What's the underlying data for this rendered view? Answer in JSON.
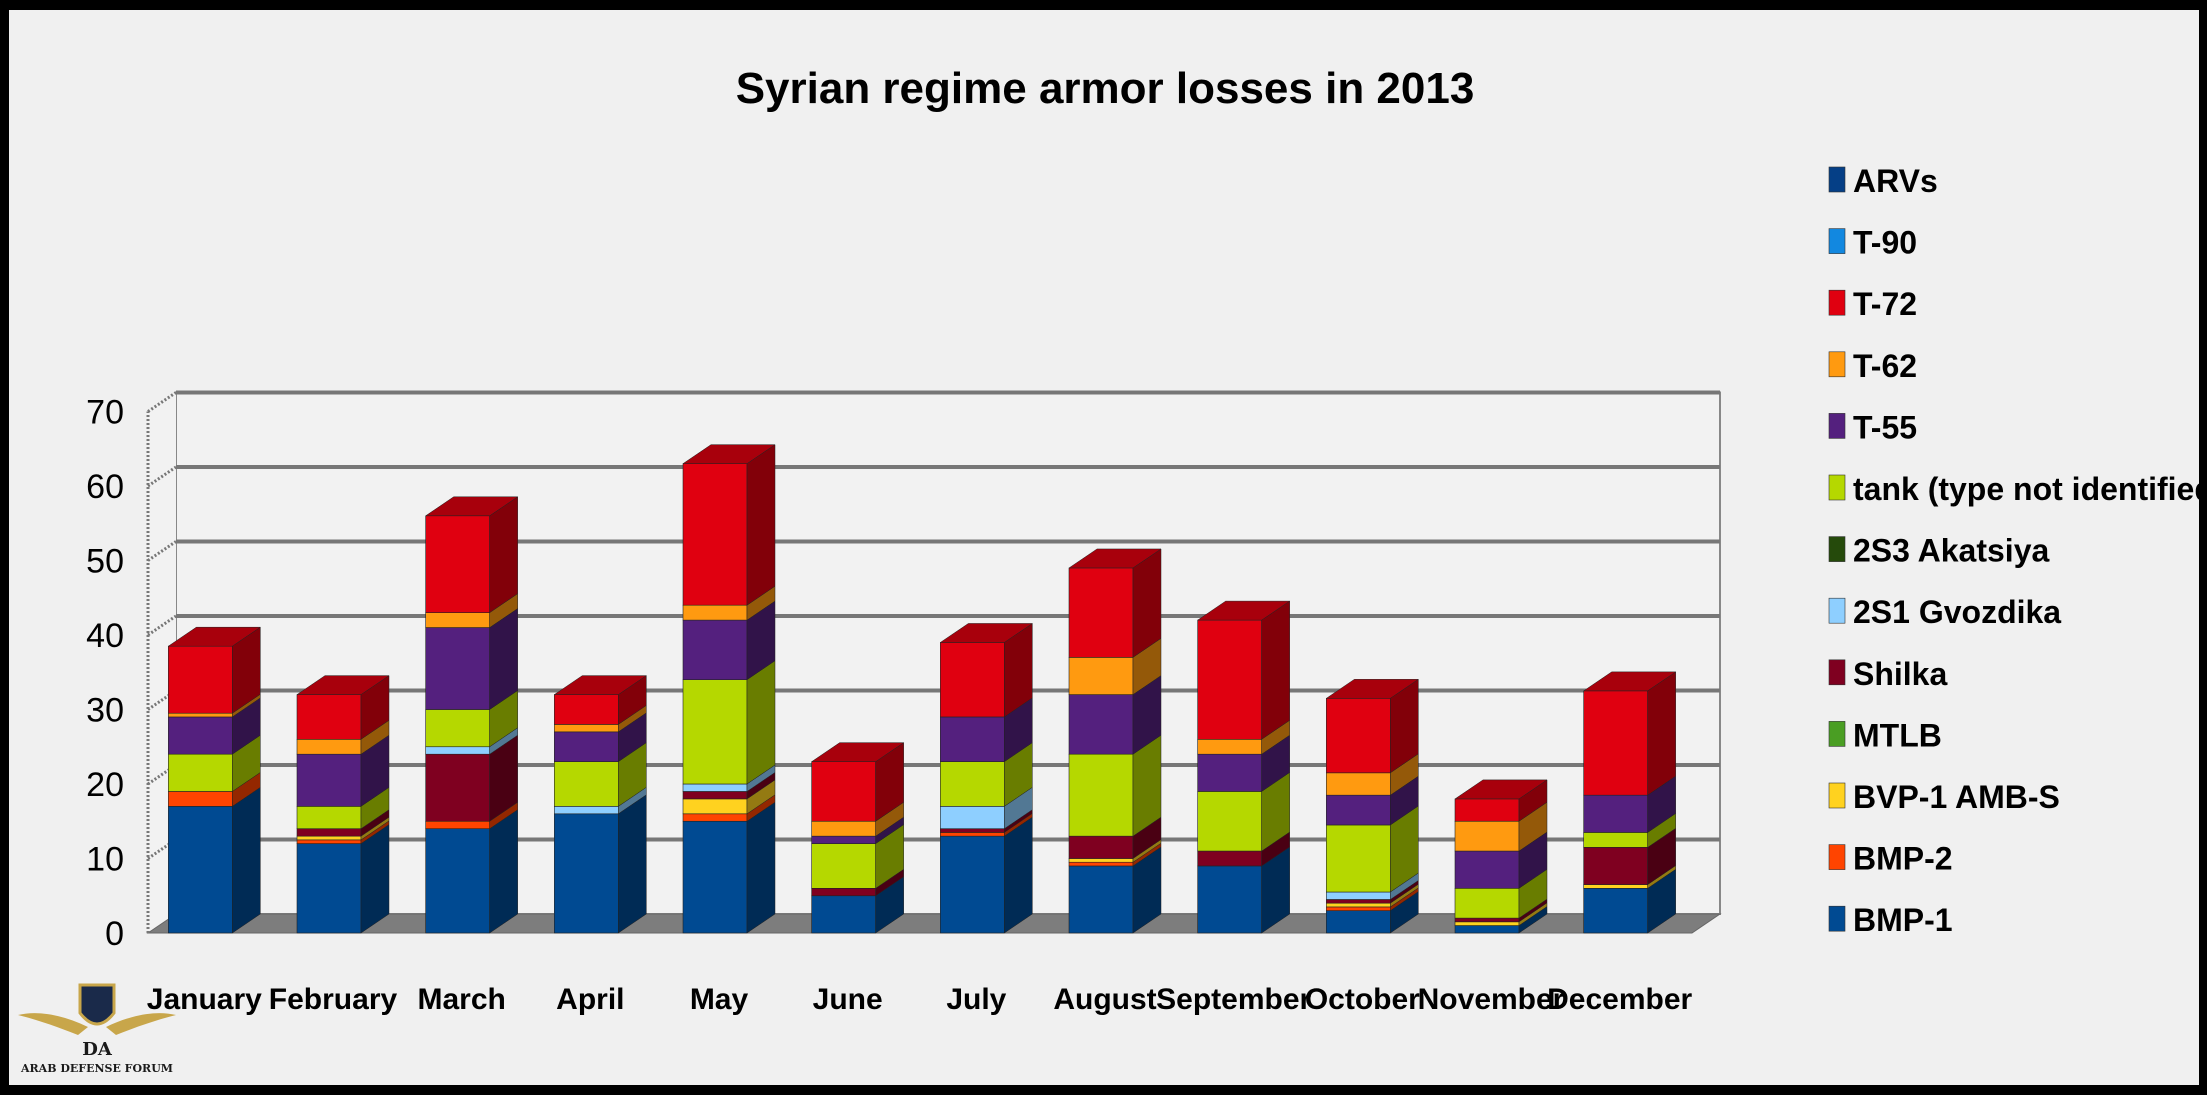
{
  "chart_data": {
    "type": "bar",
    "stacked": true,
    "three_d": true,
    "title": "Syrian regime armor losses in 2013",
    "xlabel": "",
    "ylabel": "",
    "ylim": [
      0,
      70
    ],
    "yticks": [
      0,
      10,
      20,
      30,
      40,
      50,
      60,
      70
    ],
    "grid": true,
    "legend_position": "right",
    "categories": [
      "January",
      "February",
      "March",
      "April",
      "May",
      "June",
      "July",
      "August",
      "September",
      "October",
      "November",
      "December"
    ],
    "series": [
      {
        "name": "BMP-1",
        "color": "#004a92",
        "values": [
          17,
          12,
          14,
          16,
          15,
          5,
          13,
          9,
          9,
          3,
          1,
          6
        ]
      },
      {
        "name": "BMP-2",
        "color": "#ff4400",
        "values": [
          2,
          0.5,
          1,
          0,
          1,
          0,
          0.5,
          0.5,
          0,
          0.5,
          0,
          0
        ]
      },
      {
        "name": "BVP-1 AMB-S",
        "color": "#ffd21f",
        "values": [
          0,
          0.5,
          0,
          0,
          2,
          0,
          0,
          0.5,
          0,
          0.5,
          0.5,
          0.5
        ]
      },
      {
        "name": "MTLB",
        "color": "#4a9e23",
        "values": [
          0,
          0,
          0,
          0,
          0,
          0,
          0,
          0,
          0,
          0,
          0,
          0
        ]
      },
      {
        "name": "Shilka",
        "color": "#7f0020",
        "values": [
          0,
          1,
          9,
          0,
          1,
          1,
          0.5,
          3,
          2,
          0.5,
          0.5,
          5
        ]
      },
      {
        "name": "2S1 Gvozdika",
        "color": "#8ecfff",
        "values": [
          0,
          0,
          1,
          1,
          1,
          0,
          3,
          0,
          0,
          1,
          0,
          0
        ]
      },
      {
        "name": "2S3 Akatsiya",
        "color": "#254a0b",
        "values": [
          0,
          0,
          0,
          0,
          0,
          0,
          0,
          0,
          0,
          0,
          0,
          0
        ]
      },
      {
        "name": "tank (type not identified)",
        "color": "#b5d800",
        "values": [
          5,
          3,
          5,
          6,
          14,
          6,
          6,
          11,
          8,
          9,
          4,
          2
        ]
      },
      {
        "name": "T-55",
        "color": "#54207e",
        "values": [
          5,
          7,
          11,
          4,
          8,
          1,
          6,
          8,
          5,
          4,
          5,
          5
        ]
      },
      {
        "name": "T-62",
        "color": "#ff9a10",
        "values": [
          0.5,
          2,
          2,
          1,
          2,
          2,
          0,
          5,
          2,
          3,
          4,
          0
        ]
      },
      {
        "name": "T-72",
        "color": "#e00010",
        "values": [
          9,
          6,
          13,
          4,
          19,
          8,
          10,
          12,
          16,
          10,
          3,
          14
        ]
      },
      {
        "name": "T-90",
        "color": "#1288e0",
        "values": [
          0,
          0,
          0,
          0,
          0,
          0,
          0,
          0,
          0,
          0,
          0,
          0
        ]
      },
      {
        "name": "ARVs",
        "color": "#053f86",
        "values": [
          0,
          0,
          0,
          0,
          0,
          0,
          0,
          0,
          0,
          0,
          0,
          0
        ]
      }
    ],
    "legend_order": [
      "ARVs",
      "T-90",
      "T-72",
      "T-62",
      "T-55",
      "tank (type not identified)",
      "2S3 Akatsiya",
      "2S1 Gvozdika",
      "Shilka",
      "MTLB",
      "BVP-1 AMB-S",
      "BMP-2",
      "BMP-1"
    ]
  },
  "watermark": {
    "name": "ARAB DEFENSE FORUM",
    "initials": "DA"
  }
}
